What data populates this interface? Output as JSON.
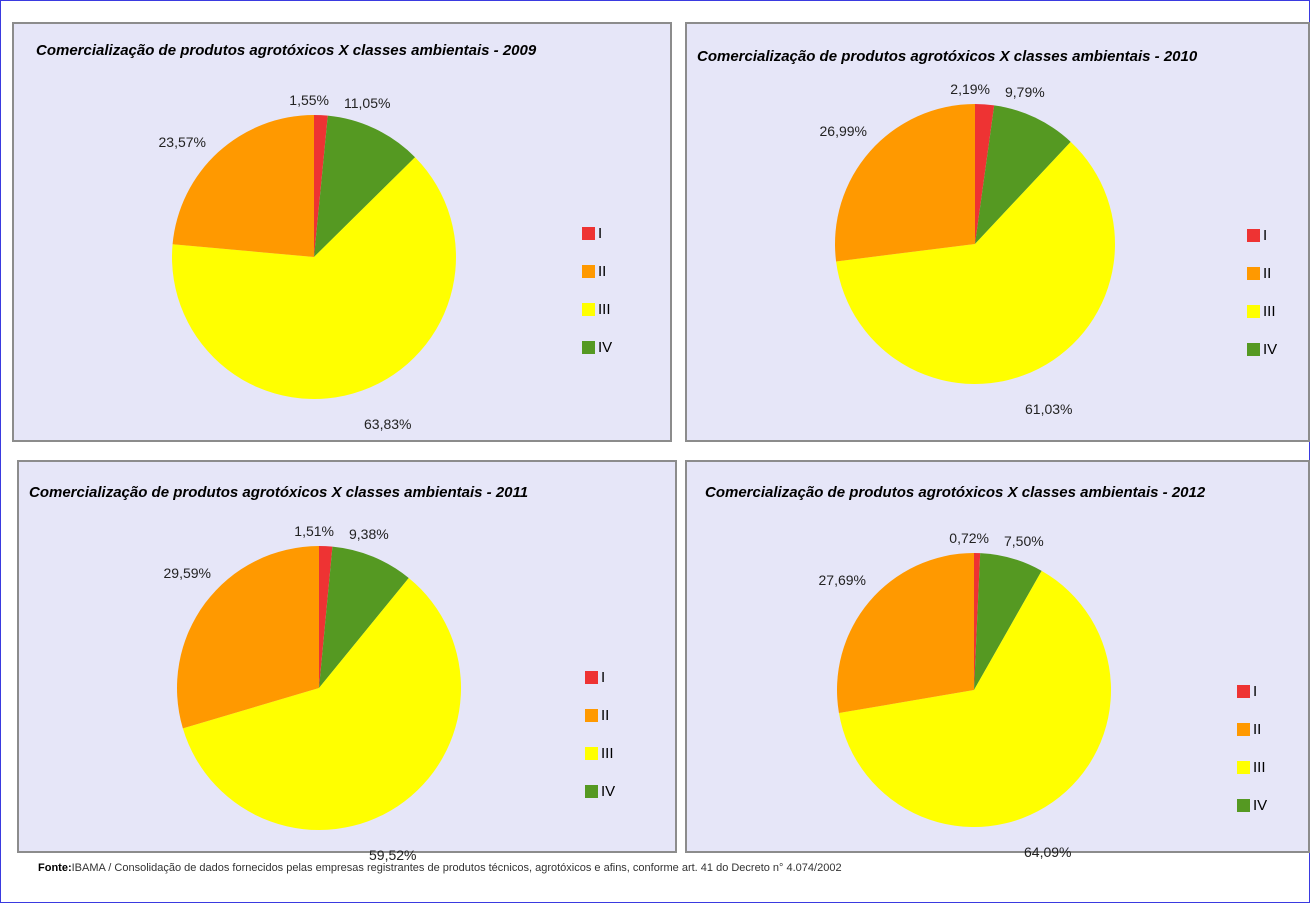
{
  "colors": {
    "I": "#ee3333",
    "II": "#ff9900",
    "III": "#ffff00",
    "IV": "#559922"
  },
  "chart_data": [
    {
      "type": "pie",
      "title": "Comercialização de produtos agrotóxicos X classes ambientais - 2009",
      "legend_position": "right",
      "slices": [
        {
          "name": "I",
          "value": 1.55,
          "label": "1,55%"
        },
        {
          "name": "IV",
          "value": 11.05,
          "label": "11,05%"
        },
        {
          "name": "III",
          "value": 63.83,
          "label": "63,83%"
        },
        {
          "name": "II",
          "value": 23.57,
          "label": "23,57%"
        }
      ],
      "legend": [
        "I",
        "II",
        "III",
        "IV"
      ]
    },
    {
      "type": "pie",
      "title": "Comercialização de produtos agrotóxicos X classes ambientais - 2010",
      "legend_position": "right",
      "slices": [
        {
          "name": "I",
          "value": 2.19,
          "label": "2,19%"
        },
        {
          "name": "IV",
          "value": 9.79,
          "label": "9,79%"
        },
        {
          "name": "III",
          "value": 61.03,
          "label": "61,03%"
        },
        {
          "name": "II",
          "value": 26.99,
          "label": "26,99%"
        }
      ],
      "legend": [
        "I",
        "II",
        "III",
        "IV"
      ]
    },
    {
      "type": "pie",
      "title": "Comercialização de produtos agrotóxicos X classes ambientais - 2011",
      "legend_position": "right",
      "slices": [
        {
          "name": "I",
          "value": 1.51,
          "label": "1,51%"
        },
        {
          "name": "IV",
          "value": 9.38,
          "label": "9,38%"
        },
        {
          "name": "III",
          "value": 59.52,
          "label": "59,52%"
        },
        {
          "name": "II",
          "value": 29.59,
          "label": "29,59%"
        }
      ],
      "legend": [
        "I",
        "II",
        "III",
        "IV"
      ]
    },
    {
      "type": "pie",
      "title": "Comercialização de produtos agrotóxicos X classes ambientais - 2012",
      "legend_position": "right",
      "slices": [
        {
          "name": "I",
          "value": 0.72,
          "label": "0,72%"
        },
        {
          "name": "IV",
          "value": 7.5,
          "label": "7,50%"
        },
        {
          "name": "III",
          "value": 64.09,
          "label": "64,09%"
        },
        {
          "name": "II",
          "value": 27.69,
          "label": "27,69%"
        }
      ],
      "legend": [
        "I",
        "II",
        "III",
        "IV"
      ]
    }
  ],
  "source": {
    "prefix": "Fonte:",
    "text": "IBAMA / Consolidação de dados fornecidos pelas empresas registrantes de produtos técnicos, agrotóxicos e afins, conforme art. 41 do Decreto n° 4.074/2002"
  }
}
